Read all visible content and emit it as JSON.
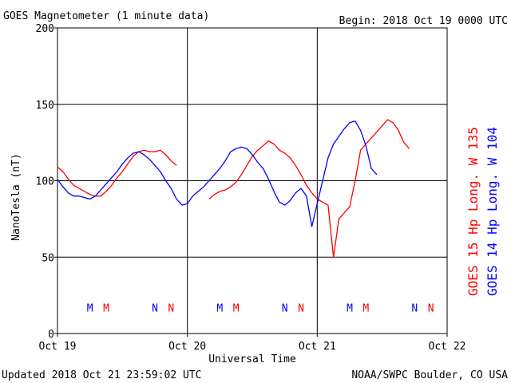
{
  "header": {
    "title": "GOES Magnetometer (1 minute data)",
    "begin": "Begin:  2018 Oct 19 0000 UTC"
  },
  "footer": {
    "updated": "Updated 2018 Oct 21 23:59:02 UTC",
    "source": "NOAA/SWPC Boulder, CO USA"
  },
  "colors": {
    "goes15": "#ff0000",
    "goes14": "#0000ff",
    "axis": "#000000"
  },
  "chart_data": {
    "type": "line",
    "title": "GOES Magnetometer (1 minute data)",
    "xlabel": "Universal Time",
    "ylabel": "NanoTesla (nT)",
    "xlim": [
      0,
      72
    ],
    "ylim": [
      0,
      200
    ],
    "x_unit": "hours since 2018 Oct 19 0000 UTC",
    "yticks": [
      "0",
      "50",
      "100",
      "150",
      "200"
    ],
    "xticks": [
      {
        "x": 0,
        "label": "Oct 19"
      },
      {
        "x": 24,
        "label": "Oct 20"
      },
      {
        "x": 48,
        "label": "Oct 21"
      },
      {
        "x": 72,
        "label": "Oct 22"
      }
    ],
    "grid": true,
    "legend": "right side, vertical",
    "series": [
      {
        "name": "GOES 15 Hp  Long. W 135",
        "color": "#ff0000",
        "x": [
          0,
          1,
          2,
          3,
          4,
          5,
          6,
          7,
          8,
          9,
          10,
          11,
          12,
          13,
          14,
          15,
          16,
          17,
          18,
          19,
          20,
          21,
          22,
          23,
          24,
          25,
          26,
          27,
          28,
          29,
          30,
          31,
          32,
          33,
          34,
          35,
          36,
          37,
          38,
          39,
          40,
          41,
          42,
          43,
          44,
          45,
          46,
          47,
          48,
          49,
          50,
          51,
          52,
          53,
          54,
          55,
          56,
          57,
          58,
          59,
          60,
          61,
          62,
          63,
          64,
          65,
          66,
          67,
          68,
          69,
          70,
          71,
          72
        ],
        "values": [
          109,
          106,
          101,
          97,
          95,
          93,
          91,
          90,
          90,
          93,
          97,
          102,
          106,
          111,
          116,
          119,
          120,
          119,
          119,
          120,
          117,
          113,
          110,
          null,
          null,
          null,
          null,
          null,
          88,
          91,
          93,
          94,
          96,
          99,
          104,
          110,
          116,
          120,
          123,
          126,
          124,
          120,
          118,
          115,
          110,
          104,
          97,
          92,
          88,
          86,
          84,
          50,
          75,
          79,
          83,
          100,
          120,
          124,
          128,
          132,
          136,
          140,
          138,
          133,
          125,
          121,
          null,
          null,
          null,
          null,
          null,
          null,
          null
        ]
      },
      {
        "name": "GOES 14 Hp  Long. W 104",
        "color": "#0000ff",
        "x": [
          0,
          1,
          2,
          3,
          4,
          5,
          6,
          7,
          8,
          9,
          10,
          11,
          12,
          13,
          14,
          15,
          16,
          17,
          18,
          19,
          20,
          21,
          22,
          23,
          24,
          25,
          26,
          27,
          28,
          29,
          30,
          31,
          32,
          33,
          34,
          35,
          36,
          37,
          38,
          39,
          40,
          41,
          42,
          43,
          44,
          45,
          46,
          47,
          48,
          49,
          50,
          51,
          52,
          53,
          54,
          55,
          56,
          57,
          58,
          59,
          60,
          61,
          62,
          63,
          64,
          65,
          66,
          67,
          68,
          69,
          70,
          71,
          72
        ],
        "values": [
          101,
          96,
          92,
          90,
          90,
          89,
          88,
          90,
          94,
          98,
          102,
          106,
          111,
          115,
          118,
          119,
          117,
          114,
          110,
          106,
          100,
          95,
          88,
          84,
          85,
          90,
          93,
          96,
          100,
          104,
          108,
          113,
          119,
          121,
          122,
          121,
          117,
          112,
          108,
          101,
          93,
          86,
          84,
          87,
          92,
          95,
          90,
          70,
          85,
          100,
          115,
          124,
          129,
          134,
          138,
          139,
          133,
          123,
          108,
          104,
          null,
          null,
          null,
          null,
          null,
          null,
          null,
          null,
          null,
          null,
          null,
          null,
          null
        ]
      }
    ],
    "annotations": [
      {
        "x": 6.0,
        "label": "M",
        "color": "#0000ff"
      },
      {
        "x": 9.0,
        "label": "M",
        "color": "#ff0000"
      },
      {
        "x": 18.0,
        "label": "N",
        "color": "#0000ff"
      },
      {
        "x": 21.0,
        "label": "N",
        "color": "#ff0000"
      },
      {
        "x": 30.0,
        "label": "M",
        "color": "#0000ff"
      },
      {
        "x": 33.0,
        "label": "M",
        "color": "#ff0000"
      },
      {
        "x": 42.0,
        "label": "N",
        "color": "#0000ff"
      },
      {
        "x": 45.0,
        "label": "N",
        "color": "#ff0000"
      },
      {
        "x": 54.0,
        "label": "M",
        "color": "#0000ff"
      },
      {
        "x": 57.0,
        "label": "M",
        "color": "#ff0000"
      },
      {
        "x": 66.0,
        "label": "N",
        "color": "#0000ff"
      },
      {
        "x": 69.0,
        "label": "N",
        "color": "#ff0000"
      }
    ],
    "annotation_y": 17
  }
}
